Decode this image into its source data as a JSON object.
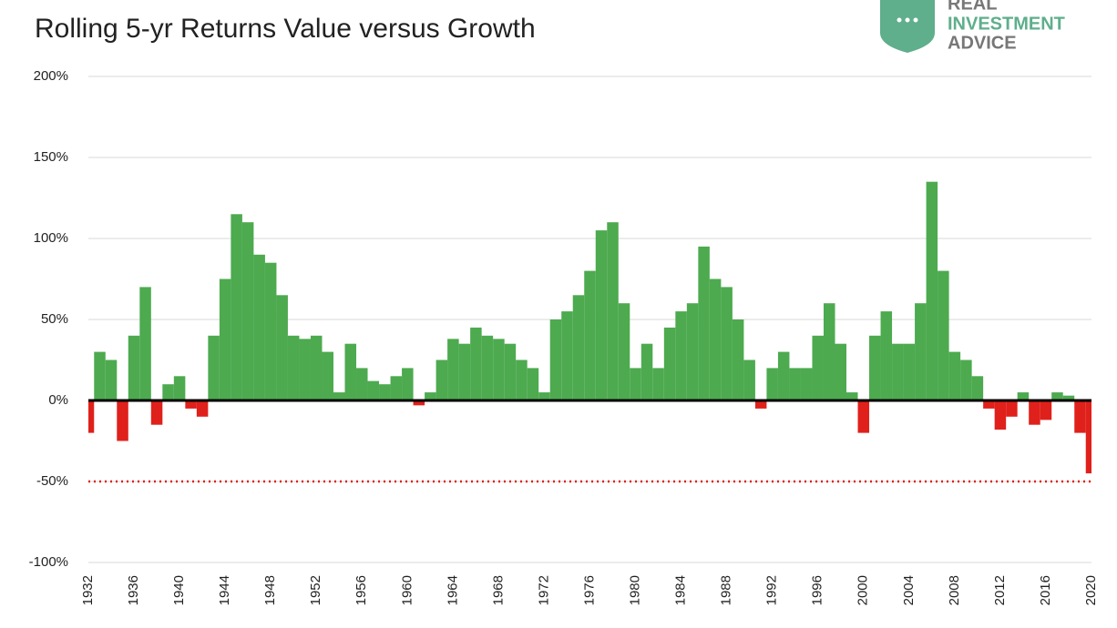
{
  "logo_text": [
    "REAL",
    "INVESTMENT",
    "ADVICE"
  ],
  "chart_data": {
    "type": "bar",
    "title": "Rolling 5-yr Returns  Value versus Growth",
    "x": [
      1932,
      1933,
      1934,
      1935,
      1936,
      1937,
      1938,
      1939,
      1940,
      1941,
      1942,
      1943,
      1944,
      1945,
      1946,
      1947,
      1948,
      1949,
      1950,
      1951,
      1952,
      1953,
      1954,
      1955,
      1956,
      1957,
      1958,
      1959,
      1960,
      1961,
      1962,
      1963,
      1964,
      1965,
      1966,
      1967,
      1968,
      1969,
      1970,
      1971,
      1972,
      1973,
      1974,
      1975,
      1976,
      1977,
      1978,
      1979,
      1980,
      1981,
      1982,
      1983,
      1984,
      1985,
      1986,
      1987,
      1988,
      1989,
      1990,
      1991,
      1992,
      1993,
      1994,
      1995,
      1996,
      1997,
      1998,
      1999,
      2000,
      2001,
      2002,
      2003,
      2004,
      2005,
      2006,
      2007,
      2008,
      2009,
      2010,
      2011,
      2012,
      2013,
      2014,
      2015,
      2016,
      2017,
      2018,
      2019,
      2020
    ],
    "values": [
      -20,
      30,
      25,
      -25,
      40,
      70,
      -15,
      10,
      15,
      -5,
      -10,
      40,
      75,
      115,
      110,
      90,
      85,
      65,
      40,
      38,
      40,
      30,
      5,
      35,
      20,
      12,
      10,
      15,
      20,
      -3,
      5,
      25,
      38,
      35,
      45,
      40,
      38,
      35,
      25,
      20,
      5,
      50,
      55,
      65,
      80,
      105,
      110,
      60,
      20,
      35,
      20,
      45,
      55,
      60,
      95,
      75,
      70,
      50,
      25,
      -5,
      20,
      30,
      20,
      20,
      40,
      60,
      35,
      5,
      -20,
      40,
      55,
      35,
      35,
      60,
      135,
      80,
      30,
      25,
      15,
      -5,
      -18,
      -10,
      5,
      -15,
      -12,
      5,
      3,
      -20,
      -45
    ],
    "positive_color": "#4daa4f",
    "negative_color": "#e0201b",
    "xlim": [
      1932,
      2020
    ],
    "xticks": [
      1932,
      1936,
      1940,
      1944,
      1948,
      1952,
      1956,
      1960,
      1964,
      1968,
      1972,
      1976,
      1980,
      1984,
      1988,
      1992,
      1996,
      2000,
      2004,
      2008,
      2012,
      2016,
      2020
    ],
    "ylim": [
      -100,
      200
    ],
    "yticks": [
      {
        "value": -100,
        "label": "-100%"
      },
      {
        "value": -50,
        "label": "-50%"
      },
      {
        "value": 0,
        "label": "0%"
      },
      {
        "value": 50,
        "label": "50%"
      },
      {
        "value": 100,
        "label": "100%"
      },
      {
        "value": 150,
        "label": "150%"
      },
      {
        "value": 200,
        "label": "200%"
      }
    ],
    "reference_line": {
      "value": -50,
      "color": "#e0201b"
    },
    "grid": true
  }
}
